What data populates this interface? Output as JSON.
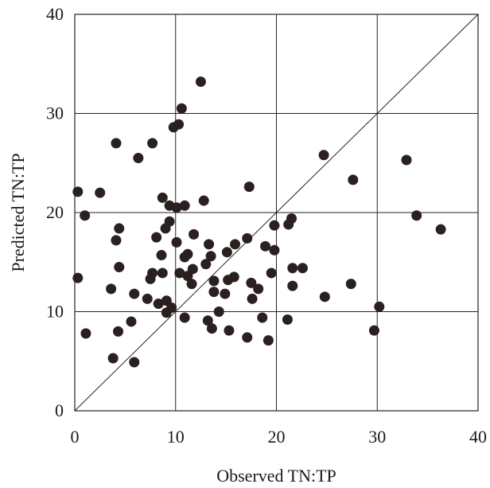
{
  "chart_data": {
    "type": "scatter",
    "title": "",
    "xlabel": "Observed TN:TP",
    "ylabel": "Predicted TN:TP",
    "xlim": [
      0,
      40
    ],
    "ylim": [
      0,
      40
    ],
    "x_ticks": [
      "0",
      "10",
      "20",
      "30",
      "40"
    ],
    "y_ticks": [
      "0",
      "10",
      "20",
      "30",
      "40"
    ],
    "grid": true,
    "reference_line": "1:1",
    "series": [
      {
        "points": [
          [
            0.3,
            22.1
          ],
          [
            0.3,
            13.4
          ],
          [
            1.0,
            19.7
          ],
          [
            1.1,
            7.8
          ],
          [
            2.5,
            22.0
          ],
          [
            3.6,
            12.3
          ],
          [
            3.8,
            5.3
          ],
          [
            4.1,
            27.0
          ],
          [
            4.1,
            17.2
          ],
          [
            4.3,
            8.0
          ],
          [
            4.4,
            18.4
          ],
          [
            4.4,
            14.5
          ],
          [
            5.6,
            9.0
          ],
          [
            5.9,
            11.8
          ],
          [
            5.9,
            4.9
          ],
          [
            6.3,
            25.5
          ],
          [
            7.2,
            11.3
          ],
          [
            7.5,
            13.3
          ],
          [
            7.7,
            27.0
          ],
          [
            7.7,
            13.9
          ],
          [
            8.1,
            17.5
          ],
          [
            8.3,
            10.8
          ],
          [
            8.6,
            15.7
          ],
          [
            8.7,
            21.5
          ],
          [
            8.7,
            13.9
          ],
          [
            9.0,
            18.4
          ],
          [
            9.1,
            11.1
          ],
          [
            9.1,
            9.9
          ],
          [
            9.4,
            20.7
          ],
          [
            9.4,
            19.1
          ],
          [
            9.6,
            10.4
          ],
          [
            9.8,
            28.6
          ],
          [
            10.1,
            20.5
          ],
          [
            10.1,
            17.0
          ],
          [
            10.3,
            28.9
          ],
          [
            10.4,
            13.9
          ],
          [
            10.6,
            30.5
          ],
          [
            10.9,
            20.7
          ],
          [
            10.9,
            15.5
          ],
          [
            10.9,
            9.4
          ],
          [
            11.2,
            15.8
          ],
          [
            11.2,
            13.6
          ],
          [
            11.6,
            12.8
          ],
          [
            11.7,
            14.3
          ],
          [
            11.8,
            17.8
          ],
          [
            12.5,
            33.2
          ],
          [
            12.8,
            21.2
          ],
          [
            13.0,
            14.8
          ],
          [
            13.2,
            9.1
          ],
          [
            13.3,
            16.8
          ],
          [
            13.5,
            15.6
          ],
          [
            13.6,
            8.3
          ],
          [
            13.8,
            13.1
          ],
          [
            13.8,
            12.0
          ],
          [
            14.3,
            10.0
          ],
          [
            14.9,
            11.8
          ],
          [
            15.1,
            16.0
          ],
          [
            15.2,
            13.2
          ],
          [
            15.3,
            8.1
          ],
          [
            15.8,
            13.5
          ],
          [
            15.9,
            16.8
          ],
          [
            17.1,
            17.4
          ],
          [
            17.1,
            7.4
          ],
          [
            17.3,
            22.6
          ],
          [
            17.5,
            12.9
          ],
          [
            17.6,
            11.3
          ],
          [
            18.2,
            12.3
          ],
          [
            18.6,
            9.4
          ],
          [
            18.9,
            16.6
          ],
          [
            19.2,
            7.1
          ],
          [
            19.5,
            13.9
          ],
          [
            19.8,
            18.7
          ],
          [
            19.8,
            16.2
          ],
          [
            21.1,
            9.2
          ],
          [
            21.2,
            18.8
          ],
          [
            21.5,
            19.4
          ],
          [
            21.6,
            14.4
          ],
          [
            21.6,
            12.6
          ],
          [
            22.6,
            14.4
          ],
          [
            24.7,
            25.8
          ],
          [
            24.8,
            11.5
          ],
          [
            27.4,
            12.8
          ],
          [
            27.6,
            23.3
          ],
          [
            29.7,
            8.1
          ],
          [
            30.2,
            10.5
          ],
          [
            32.9,
            25.3
          ],
          [
            33.9,
            19.7
          ],
          [
            36.3,
            18.3
          ]
        ]
      }
    ]
  }
}
